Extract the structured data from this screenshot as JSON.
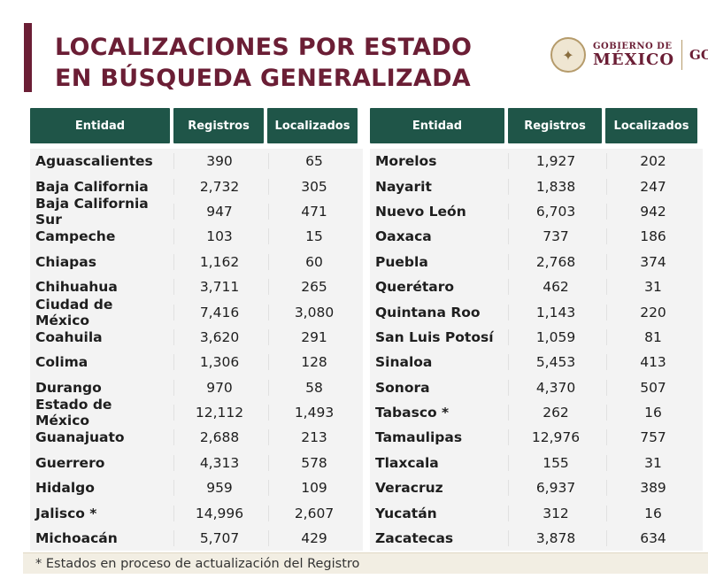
{
  "title": {
    "line1": "LOCALIZACIONES POR ESTADO",
    "line2": "EN BÚSQUEDA GENERALIZADA"
  },
  "logo": {
    "line1": "GOBIERNO DE",
    "line2": "MÉXICO",
    "cut": "GOB"
  },
  "colors": {
    "accent": "#6b1e35",
    "header": "#1f5548"
  },
  "columns": {
    "entidad": "Entidad",
    "registros": "Registros",
    "localizados": "Localizados"
  },
  "left_rows": [
    {
      "entidad": "Aguascalientes",
      "registros": "390",
      "localizados": "65"
    },
    {
      "entidad": "Baja California",
      "registros": "2,732",
      "localizados": "305"
    },
    {
      "entidad": "Baja California Sur",
      "registros": "947",
      "localizados": "471"
    },
    {
      "entidad": "Campeche",
      "registros": "103",
      "localizados": "15"
    },
    {
      "entidad": "Chiapas",
      "registros": "1,162",
      "localizados": "60"
    },
    {
      "entidad": "Chihuahua",
      "registros": "3,711",
      "localizados": "265"
    },
    {
      "entidad": "Ciudad de México",
      "registros": "7,416",
      "localizados": "3,080"
    },
    {
      "entidad": "Coahuila",
      "registros": "3,620",
      "localizados": "291"
    },
    {
      "entidad": "Colima",
      "registros": "1,306",
      "localizados": "128"
    },
    {
      "entidad": "Durango",
      "registros": "970",
      "localizados": "58"
    },
    {
      "entidad": "Estado de México",
      "registros": "12,112",
      "localizados": "1,493"
    },
    {
      "entidad": "Guanajuato",
      "registros": "2,688",
      "localizados": "213"
    },
    {
      "entidad": "Guerrero",
      "registros": "4,313",
      "localizados": "578"
    },
    {
      "entidad": "Hidalgo",
      "registros": "959",
      "localizados": "109"
    },
    {
      "entidad": "Jalisco *",
      "registros": "14,996",
      "localizados": "2,607"
    },
    {
      "entidad": "Michoacán",
      "registros": "5,707",
      "localizados": "429"
    }
  ],
  "right_rows": [
    {
      "entidad": "Morelos",
      "registros": "1,927",
      "localizados": "202"
    },
    {
      "entidad": "Nayarit",
      "registros": "1,838",
      "localizados": "247"
    },
    {
      "entidad": "Nuevo León",
      "registros": "6,703",
      "localizados": "942"
    },
    {
      "entidad": "Oaxaca",
      "registros": "737",
      "localizados": "186"
    },
    {
      "entidad": "Puebla",
      "registros": "2,768",
      "localizados": "374"
    },
    {
      "entidad": "Querétaro",
      "registros": "462",
      "localizados": "31"
    },
    {
      "entidad": "Quintana Roo",
      "registros": "1,143",
      "localizados": "220"
    },
    {
      "entidad": "San Luis Potosí",
      "registros": "1,059",
      "localizados": "81"
    },
    {
      "entidad": "Sinaloa",
      "registros": "5,453",
      "localizados": "413"
    },
    {
      "entidad": "Sonora",
      "registros": "4,370",
      "localizados": "507"
    },
    {
      "entidad": "Tabasco *",
      "registros": "262",
      "localizados": "16"
    },
    {
      "entidad": "Tamaulipas",
      "registros": "12,976",
      "localizados": "757"
    },
    {
      "entidad": "Tlaxcala",
      "registros": "155",
      "localizados": "31"
    },
    {
      "entidad": "Veracruz",
      "registros": "6,937",
      "localizados": "389"
    },
    {
      "entidad": "Yucatán",
      "registros": "312",
      "localizados": "16"
    },
    {
      "entidad": "Zacatecas",
      "registros": "3,878",
      "localizados": "634"
    }
  ],
  "footnote": "* Estados en proceso de actualización del Registro"
}
